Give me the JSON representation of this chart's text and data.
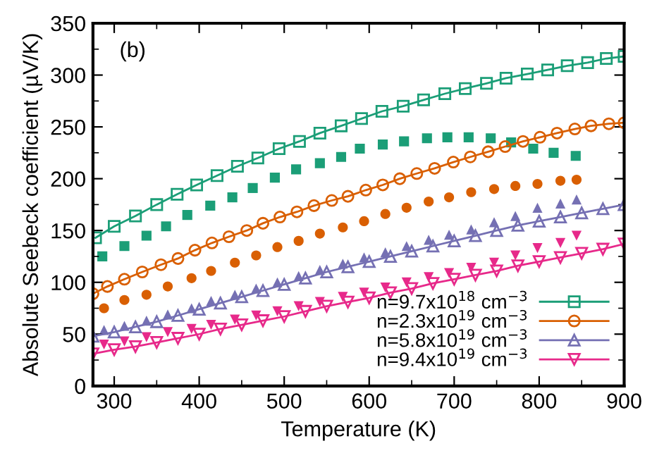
{
  "chart_data": {
    "type": "line",
    "xlabel": "Temperature (K)",
    "ylabel": "Absolute Seebeck coefficient (µV/K)",
    "annotations": [
      "(b)"
    ],
    "xlim": [
      275,
      900
    ],
    "xticks": [
      300,
      400,
      500,
      600,
      700,
      800,
      900
    ],
    "ylim": [
      0,
      350
    ],
    "yticks": [
      0,
      50,
      100,
      150,
      200,
      250,
      300,
      350
    ],
    "grid": false,
    "legend": "bottom right",
    "series": [
      {
        "name": "n=9.7x10$^{18}$ cm$^{−3}$",
        "marker": "square",
        "color": "#1b9e77",
        "x": [
          278,
          300,
          325,
          350,
          374,
          397,
          421,
          445,
          469,
          494,
          518,
          542,
          567,
          591,
          615,
          640,
          664,
          689,
          713,
          738,
          761,
          786,
          810,
          833,
          857,
          879,
          900
        ],
        "values": [
          143,
          154,
          164,
          175,
          185,
          194,
          203,
          212,
          220,
          229,
          236,
          244,
          251,
          258,
          265,
          270,
          276,
          282,
          287,
          292,
          297,
          301,
          305,
          309,
          312,
          316,
          318
        ]
      },
      {
        "name": "n=2.3x10$^{19}$ cm$^{−3}$",
        "marker": "circle",
        "color": "#d95f02",
        "x": [
          275,
          292,
          312,
          333,
          355,
          375,
          395,
          415,
          435,
          456,
          475,
          495,
          515,
          535,
          556,
          575,
          596,
          616,
          636,
          656,
          677,
          699,
          719,
          740,
          760,
          781,
          801,
          821,
          842,
          861,
          882,
          900
        ],
        "values": [
          89,
          96,
          103,
          110,
          117,
          123,
          131,
          138,
          144,
          150,
          157,
          163,
          168,
          174,
          179,
          183,
          189,
          194,
          200,
          205,
          210,
          216,
          221,
          226,
          231,
          236,
          240,
          244,
          248,
          251,
          253,
          254
        ]
      },
      {
        "name": "n=5.8x10$^{19}$ cm$^{−3}$",
        "marker": "triangle",
        "color": "#7570b3",
        "x": [
          275,
          300,
          325,
          350,
          375,
          400,
          425,
          450,
          475,
          500,
          525,
          550,
          575,
          600,
          625,
          650,
          675,
          700,
          725,
          750,
          775,
          800,
          825,
          850,
          875,
          900
        ],
        "values": [
          48,
          52,
          57,
          62,
          68,
          74,
          80,
          86,
          92,
          98,
          104,
          110,
          115,
          120,
          125,
          130,
          135,
          140,
          145,
          150,
          155,
          159,
          163,
          167,
          171,
          175
        ]
      },
      {
        "name": "n=9.4x10$^{19}$ cm$^{−3}$",
        "marker": "triangle_down",
        "color": "#e7298a",
        "x": [
          275,
          300,
          325,
          350,
          375,
          400,
          425,
          450,
          475,
          500,
          525,
          550,
          575,
          600,
          625,
          650,
          675,
          700,
          725,
          750,
          775,
          800,
          825,
          850,
          875,
          900
        ],
        "values": [
          31,
          35,
          38,
          42,
          46,
          50,
          55,
          59,
          63,
          67,
          72,
          77,
          81,
          85,
          90,
          94,
          99,
          103,
          107,
          111,
          116,
          120,
          124,
          128,
          132,
          137
        ]
      },
      {
        "type": "scatter",
        "marker": "square",
        "color": "#1b9e77",
        "x": [
          286,
          312,
          338,
          361,
          386,
          413,
          439,
          463,
          489,
          514,
          542,
          567,
          589,
          616,
          641,
          668,
          692,
          717,
          743,
          767,
          793,
          817,
          843
        ],
        "values": [
          125,
          135,
          145,
          154,
          165,
          174,
          182,
          191,
          201,
          209,
          215,
          221,
          229,
          233,
          236,
          239,
          240,
          240,
          239,
          235,
          229,
          225,
          222
        ]
      },
      {
        "type": "scatter",
        "marker": "circle",
        "color": "#d95f02",
        "x": [
          288,
          312,
          338,
          363,
          391,
          414,
          442,
          467,
          492,
          517,
          542,
          569,
          594,
          619,
          644,
          670,
          694,
          720,
          747,
          772,
          798,
          825,
          844
        ],
        "values": [
          75,
          83,
          88,
          96,
          104,
          111,
          119,
          126,
          134,
          140,
          147,
          153,
          159,
          166,
          172,
          178,
          182,
          187,
          190,
          193,
          195,
          198,
          199
        ]
      },
      {
        "type": "scatter",
        "marker": "triangle",
        "color": "#7570b3",
        "x": [
          288,
          312,
          338,
          363,
          391,
          414,
          442,
          467,
          492,
          517,
          542,
          569,
          594,
          619,
          644,
          670,
          694,
          720,
          747,
          772,
          798,
          825,
          844
        ],
        "values": [
          54,
          58,
          63,
          69,
          75,
          82,
          88,
          94,
          100,
          106,
          112,
          118,
          124,
          129,
          135,
          141,
          146,
          151,
          158,
          164,
          172,
          176,
          180
        ]
      },
      {
        "type": "scatter",
        "marker": "triangle_down",
        "color": "#e7298a",
        "x": [
          288,
          312,
          338,
          363,
          391,
          414,
          442,
          467,
          492,
          517,
          542,
          569,
          594,
          619,
          644,
          670,
          694,
          720,
          747,
          772,
          798,
          825,
          844
        ],
        "values": [
          40,
          43,
          47,
          52,
          55,
          59,
          64,
          68,
          72,
          77,
          81,
          86,
          90,
          95,
          100,
          105,
          109,
          114,
          119,
          126,
          133,
          138,
          145
        ]
      }
    ]
  }
}
